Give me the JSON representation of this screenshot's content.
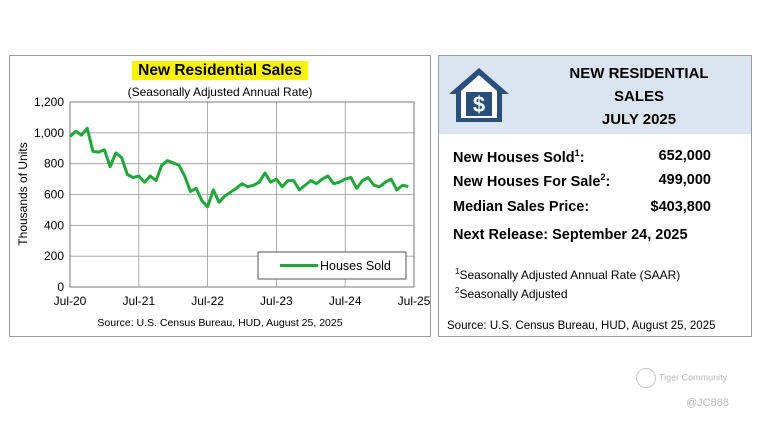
{
  "chart_data": {
    "type": "line",
    "title": "New Residential Sales",
    "subtitle": "(Seasonally Adjusted Annual Rate)",
    "ylabel": "Thousands of Units",
    "ylim": [
      0,
      1200
    ],
    "yticks": [
      0,
      200,
      400,
      600,
      800,
      1000,
      1200
    ],
    "ytick_labels": [
      "0",
      "200",
      "400",
      "600",
      "800",
      "1,000",
      "1,200"
    ],
    "xlim": [
      0,
      60
    ],
    "xticks": [
      0,
      12,
      24,
      36,
      48,
      60
    ],
    "xtick_labels": [
      "Jul-20",
      "Jul-21",
      "Jul-22",
      "Jul-23",
      "Jul-24",
      "Jul-25"
    ],
    "series": [
      {
        "name": "Houses Sold",
        "color": "#21a63c",
        "values": [
          975,
          1010,
          985,
          1030,
          880,
          875,
          890,
          780,
          870,
          840,
          730,
          710,
          720,
          680,
          720,
          690,
          790,
          820,
          805,
          790,
          720,
          620,
          640,
          560,
          520,
          630,
          550,
          590,
          615,
          640,
          670,
          650,
          660,
          680,
          740,
          680,
          700,
          650,
          690,
          690,
          630,
          660,
          690,
          670,
          700,
          720,
          670,
          680,
          700,
          710,
          640,
          690,
          710,
          660,
          650,
          680,
          700,
          630,
          660,
          652
        ]
      }
    ],
    "legend": "bottom-right",
    "source": "Source:  U.S. Census Bureau, HUD, August 25, 2025"
  },
  "info": {
    "title_line1": "NEW RESIDENTIAL",
    "title_line2": "SALES",
    "title_line3": "JULY 2025",
    "rows": [
      {
        "label": "New Houses Sold",
        "sup": "1",
        "value": "652,000"
      },
      {
        "label": "New Houses For Sale",
        "sup": "2",
        "value": "499,000"
      },
      {
        "label": "Median Sales Price:",
        "sup": "",
        "value": "$403,800"
      },
      {
        "label": "Next Release:  September 24, 2025",
        "sup": "",
        "value": ""
      }
    ],
    "notes": [
      {
        "sup": "1",
        "text": "Seasonally Adjusted Annual Rate (SAAR)"
      },
      {
        "sup": "2",
        "text": "Seasonally Adjusted"
      }
    ],
    "source": "Source:  U.S. Census Bureau, HUD, August 25, 2025",
    "colors": {
      "header_bg": "#dbe4f1",
      "house_icon": "#2a4f7c"
    }
  },
  "watermark": {
    "brand": "Tiger Community",
    "handle": "@JC888"
  }
}
